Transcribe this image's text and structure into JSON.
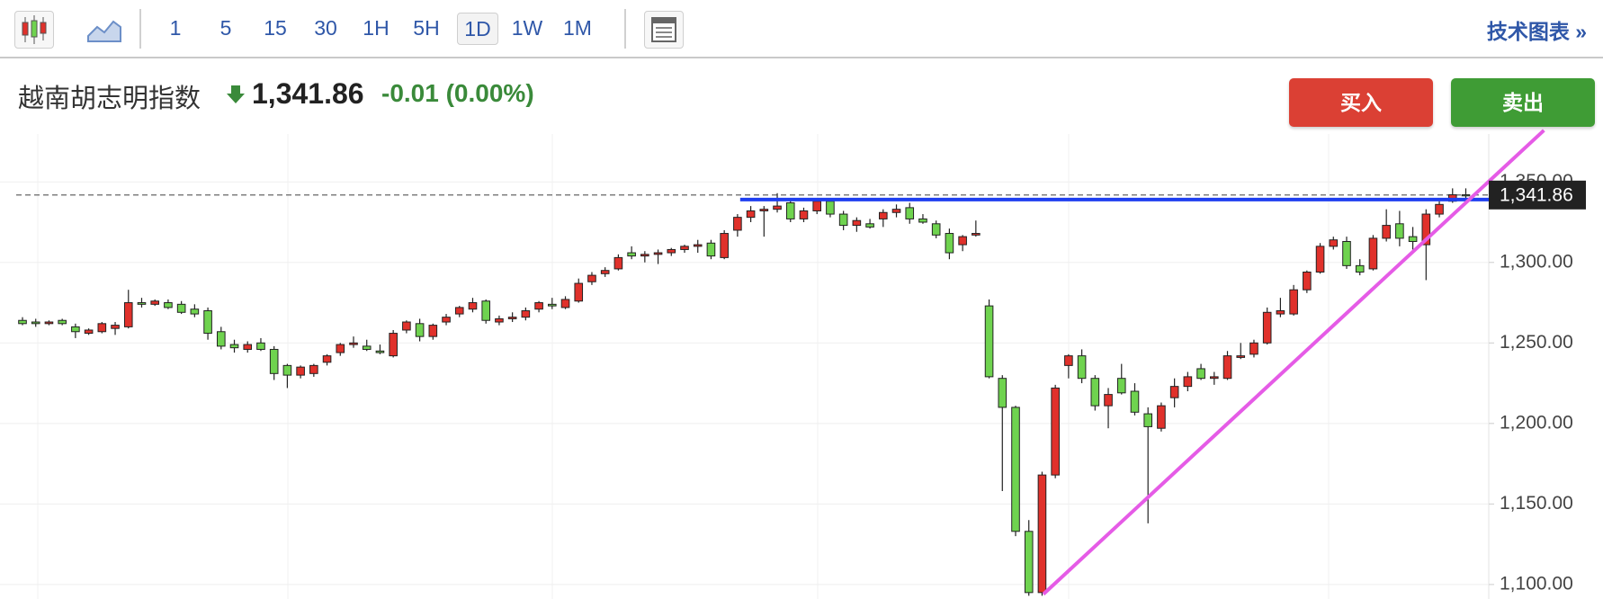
{
  "toolbar": {
    "intervals": [
      "1",
      "5",
      "15",
      "30",
      "1H",
      "5H",
      "1D",
      "1W",
      "1M"
    ],
    "selected_index": 6,
    "link": "技术图表 »"
  },
  "header": {
    "title": "越南胡志明指数",
    "price": "1,341.86",
    "change": "-0.01 (0.00%)",
    "buy": "买入",
    "sell": "卖出"
  },
  "chart_data": {
    "type": "candlestick",
    "up_color": "#e0312b",
    "down_color": "#6fd34f",
    "ylim": [
      1091,
      1377.5
    ],
    "yticks": [
      {
        "value": 1100,
        "label": "1,100.00"
      },
      {
        "value": 1150,
        "label": "1,150.00"
      },
      {
        "value": 1200,
        "label": "1,200.00"
      },
      {
        "value": 1250,
        "label": "1,250.00"
      },
      {
        "value": 1300,
        "label": "1,300.00"
      },
      {
        "value": 1350,
        "label": "1,350.00"
      }
    ],
    "grid": true,
    "last": {
      "value": 1341.86,
      "label": "1,341.86"
    },
    "open": [
      1264,
      1263,
      1262,
      1264,
      1260,
      1256,
      1257,
      1259,
      1260,
      1275,
      1274,
      1275,
      1274,
      1271,
      1270,
      1257,
      1249,
      1246,
      1250,
      1246,
      1236,
      1230,
      1231,
      1238,
      1244,
      1249,
      1248,
      1245,
      1242,
      1258,
      1262,
      1254,
      1263,
      1268,
      1271,
      1276,
      1263,
      1265,
      1266,
      1271,
      1274,
      1272,
      1276,
      1288,
      1293,
      1296,
      1306,
      1304,
      1305,
      1306,
      1308,
      1310,
      1312,
      1303,
      1320,
      1328,
      1332,
      1333,
      1337,
      1327,
      1332,
      1338,
      1330,
      1323,
      1324,
      1327,
      1331,
      1334,
      1327,
      1324,
      1318,
      1311,
      1317,
      1273,
      1228,
      1210,
      1133,
      1095,
      1168,
      1236,
      1242,
      1228,
      1211,
      1228,
      1220,
      1206,
      1197,
      1216,
      1223,
      1234,
      1228,
      1228,
      1241,
      1243,
      1250,
      1268,
      1268,
      1283,
      1294,
      1310,
      1313,
      1298,
      1296,
      1315,
      1324,
      1316,
      1311,
      1330,
      1338,
      1342
    ],
    "high": [
      1266,
      1265,
      1264,
      1265,
      1262,
      1259,
      1263,
      1263,
      1283,
      1278,
      1277,
      1277,
      1276,
      1274,
      1272,
      1260,
      1252,
      1251,
      1253,
      1248,
      1237,
      1236,
      1237,
      1243,
      1250,
      1254,
      1252,
      1249,
      1258,
      1264,
      1265,
      1262,
      1268,
      1273,
      1278,
      1277,
      1267,
      1269,
      1272,
      1276,
      1278,
      1279,
      1290,
      1294,
      1297,
      1305,
      1310,
      1307,
      1308,
      1309,
      1311,
      1314,
      1314,
      1320,
      1330,
      1335,
      1335,
      1343,
      1340,
      1334,
      1339,
      1340,
      1332,
      1328,
      1327,
      1333,
      1336,
      1337,
      1330,
      1326,
      1321,
      1317,
      1326,
      1277,
      1230,
      1211,
      1140,
      1170,
      1224,
      1243,
      1246,
      1230,
      1222,
      1237,
      1225,
      1210,
      1213,
      1228,
      1232,
      1237,
      1232,
      1245,
      1250,
      1252,
      1272,
      1278,
      1286,
      1295,
      1312,
      1316,
      1316,
      1302,
      1317,
      1333,
      1332,
      1322,
      1333,
      1338,
      1346,
      1346
    ],
    "low": [
      1261,
      1260,
      1261,
      1261,
      1253,
      1255,
      1256,
      1255,
      1259,
      1272,
      1273,
      1271,
      1268,
      1266,
      1252,
      1246,
      1244,
      1244,
      1245,
      1227,
      1222,
      1228,
      1229,
      1236,
      1242,
      1247,
      1245,
      1243,
      1241,
      1256,
      1251,
      1252,
      1261,
      1266,
      1269,
      1262,
      1261,
      1263,
      1264,
      1269,
      1271,
      1271,
      1275,
      1286,
      1291,
      1295,
      1302,
      1300,
      1299,
      1304,
      1306,
      1306,
      1302,
      1302,
      1316,
      1325,
      1316,
      1331,
      1325,
      1325,
      1330,
      1328,
      1320,
      1319,
      1321,
      1322,
      1328,
      1324,
      1324,
      1315,
      1302,
      1307,
      1316,
      1228,
      1158,
      1130,
      1093,
      1093,
      1166,
      1228,
      1225,
      1208,
      1197,
      1218,
      1205,
      1138,
      1195,
      1210,
      1220,
      1227,
      1224,
      1227,
      1240,
      1241,
      1249,
      1266,
      1267,
      1281,
      1293,
      1308,
      1296,
      1292,
      1295,
      1313,
      1310,
      1308,
      1289,
      1328,
      1337,
      1340
    ],
    "close": [
      1262,
      1262,
      1263,
      1262,
      1257,
      1258,
      1262,
      1261,
      1275,
      1274,
      1276,
      1272,
      1269,
      1268,
      1256,
      1248,
      1247,
      1249,
      1246,
      1231,
      1230,
      1235,
      1236,
      1242,
      1249,
      1250,
      1246,
      1244,
      1256,
      1263,
      1254,
      1261,
      1266,
      1272,
      1275,
      1264,
      1265,
      1266,
      1270,
      1275,
      1273,
      1277,
      1287,
      1292,
      1295,
      1303,
      1304,
      1305,
      1306,
      1308,
      1310,
      1311,
      1304,
      1318,
      1328,
      1332,
      1333,
      1335,
      1327,
      1332,
      1338,
      1330,
      1323,
      1326,
      1322,
      1331,
      1333,
      1327,
      1325,
      1317,
      1306,
      1316,
      1318,
      1229,
      1210,
      1133,
      1095,
      1168,
      1222,
      1242,
      1228,
      1211,
      1218,
      1219,
      1207,
      1198,
      1211,
      1223,
      1229,
      1228,
      1229,
      1242,
      1242,
      1250,
      1269,
      1270,
      1283,
      1294,
      1310,
      1314,
      1298,
      1294,
      1315,
      1323,
      1315,
      1313,
      1330,
      1336,
      1342,
      1341.86
    ],
    "trend_lines": [
      {
        "color": "#1f3ff0",
        "x": [
          54.2,
          114.9
        ],
        "y": [
          1339,
          1339
        ]
      },
      {
        "color": "#e55be6",
        "x": [
          77.1,
          114.9
        ],
        "y": [
          1094,
          1382
        ]
      }
    ]
  }
}
